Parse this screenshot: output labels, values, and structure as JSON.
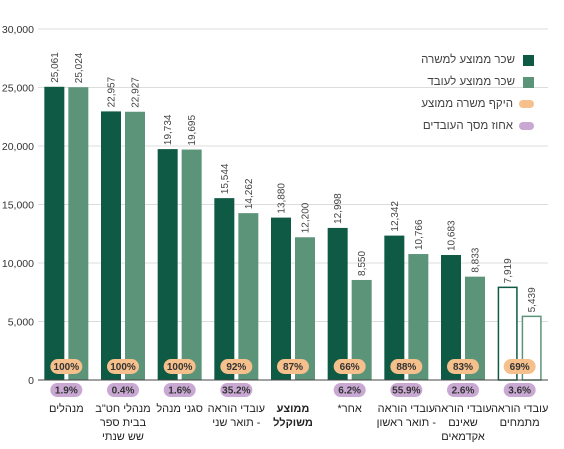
{
  "chart_data": {
    "type": "bar",
    "title": "",
    "xlabel": "",
    "ylabel": "",
    "ylim": [
      0,
      30000
    ],
    "yticks": [
      "0",
      "5,000",
      "10,000",
      "15,000",
      "20,000",
      "25,000",
      "30,000"
    ],
    "grid": true,
    "legend_position": "top-right",
    "categories": [
      {
        "lines": [
          "מנהלים"
        ],
        "bold": false
      },
      {
        "lines": [
          "מנהלי חט\"ב",
          "בבית ספר",
          "שש שנתי"
        ],
        "bold": false
      },
      {
        "lines": [
          "סגני מנהל"
        ],
        "bold": false
      },
      {
        "lines": [
          "עובדי הוראה",
          "- תואר שני"
        ],
        "bold": false
      },
      {
        "lines": [
          "ממוצע",
          "משוקלל"
        ],
        "bold": true
      },
      {
        "lines": [
          "אחר*"
        ],
        "bold": false
      },
      {
        "lines": [
          "עובדי הוראה",
          "- תואר ראשון"
        ],
        "bold": false
      },
      {
        "lines": [
          "עובדי הוראה",
          "שאינם",
          "אקדמאים"
        ],
        "bold": false
      },
      {
        "lines": [
          "עובדי הוראה",
          "מתמחים"
        ],
        "bold": false
      }
    ],
    "series": [
      {
        "name": "שכר ממוצע למשרה",
        "color": "#0e5a45",
        "values": [
          25061,
          22957,
          19734,
          15544,
          13880,
          12998,
          12342,
          10683,
          7919
        ],
        "labels": [
          "25,061",
          "22,957",
          "19,734",
          "15,544",
          "13,880",
          "12,998",
          "12,342",
          "10,683",
          "7,919"
        ]
      },
      {
        "name": "שכר ממוצע לעובד",
        "color": "#5c9479",
        "values": [
          25024,
          22927,
          19695,
          14262,
          12200,
          8550,
          10766,
          8833,
          5439
        ],
        "labels": [
          "25,024",
          "22,927",
          "19,695",
          "14,262",
          "12,200",
          "8,550",
          "10,766",
          "8,833",
          "5,439"
        ]
      }
    ],
    "scope": {
      "name": "היקף משרה ממוצע",
      "color": "#f5c08c",
      "labels": [
        "100%",
        "100%",
        "100%",
        "92%",
        "87%",
        "66%",
        "88%",
        "83%",
        "69%"
      ]
    },
    "share": {
      "name": "אחוז מסך העובדים",
      "color": "#c9a9d3",
      "labels": [
        "1.9%",
        "0.4%",
        "1.6%",
        "35.2%",
        "",
        "6.2%",
        "55.9%",
        "2.6%",
        "3.6%"
      ]
    },
    "outlined_last_group": true
  }
}
